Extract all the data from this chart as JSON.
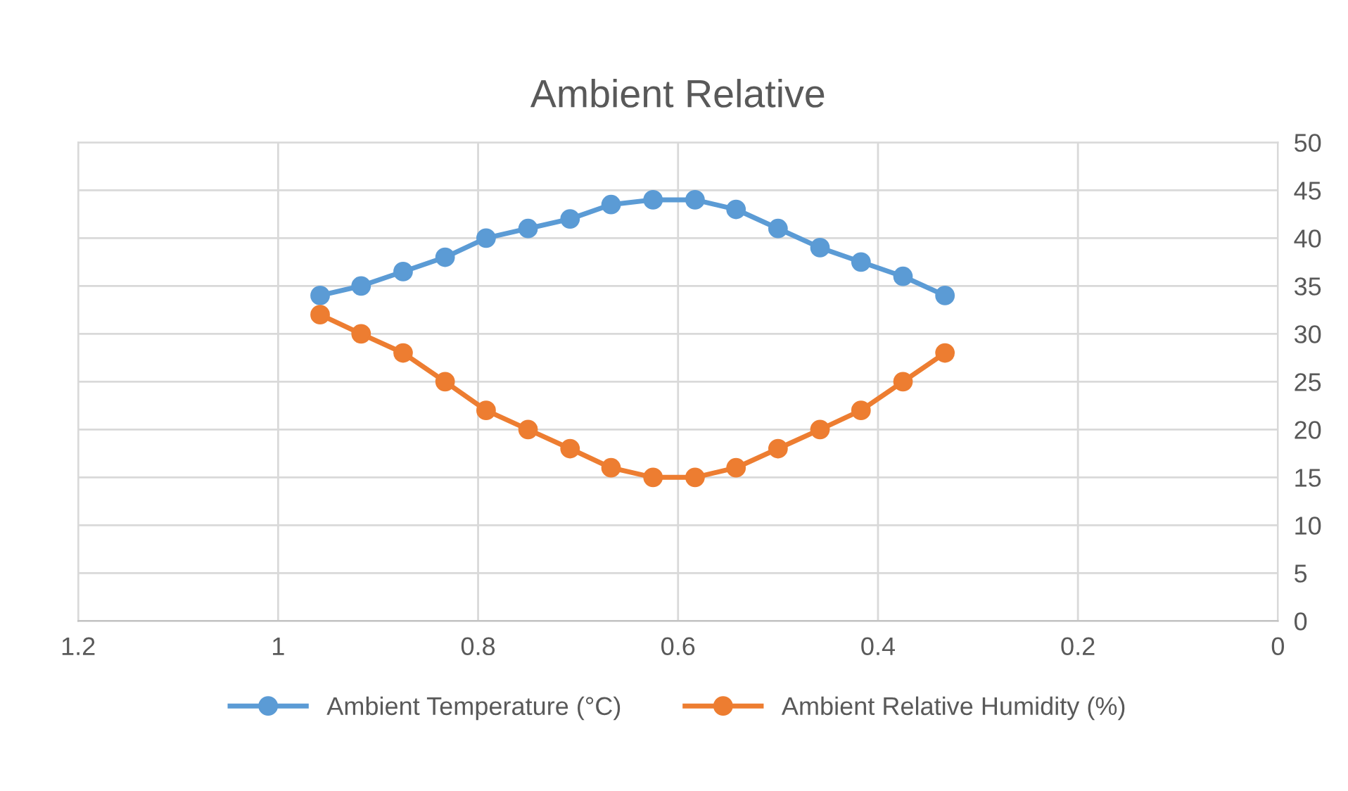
{
  "chart_data": {
    "type": "line",
    "title": "Ambient Relative",
    "x": [
      0.958,
      0.917,
      0.875,
      0.833,
      0.792,
      0.75,
      0.708,
      0.667,
      0.625,
      0.583,
      0.542,
      0.5,
      0.458,
      0.417,
      0.375,
      0.333
    ],
    "series": [
      {
        "name": "Ambient Temperature (°C)",
        "color": "#5b9bd5",
        "values": [
          34,
          35,
          36.5,
          38,
          40,
          41,
          42,
          43.5,
          44,
          44,
          43,
          41,
          39,
          37.5,
          36,
          34
        ]
      },
      {
        "name": "Ambient Relative Humidity (%)",
        "color": "#ed7d31",
        "values": [
          32,
          30,
          28,
          25,
          22,
          20,
          18,
          16,
          15,
          15,
          16,
          18,
          20,
          22,
          25,
          28
        ]
      }
    ],
    "xlim": [
      1.2,
      0
    ],
    "xticks": [
      1.2,
      1,
      0.8,
      0.6,
      0.4,
      0.2,
      0
    ],
    "ylim": [
      0,
      50
    ],
    "yticks": [
      0,
      5,
      10,
      15,
      20,
      25,
      30,
      35,
      40,
      45,
      50
    ],
    "grid": true,
    "legend": "bottom",
    "marker": "circle",
    "line_style": "solid"
  }
}
